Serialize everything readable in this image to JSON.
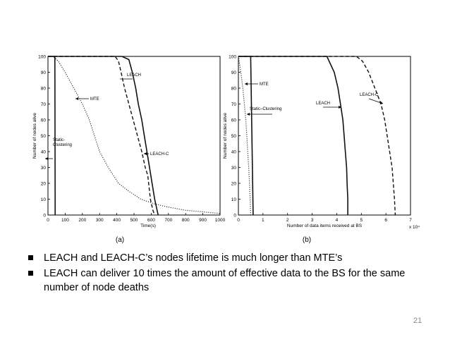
{
  "chart_data": [
    {
      "type": "line",
      "panel_label": "(a)",
      "xlabel": "Time(s)",
      "ylabel": "Number of nodes alive",
      "xlim": [
        0,
        1000
      ],
      "ylim": [
        0,
        100
      ],
      "x_ticks": [
        0,
        100,
        200,
        300,
        400,
        500,
        600,
        700,
        800,
        900,
        1000
      ],
      "y_ticks": [
        0,
        10,
        20,
        30,
        40,
        50,
        60,
        70,
        80,
        90,
        100
      ],
      "x_tick_labels": [
        "0",
        "100",
        "200",
        "300",
        "400",
        "500",
        "600",
        "700",
        "800",
        "900",
        "1000"
      ],
      "y_tick_labels": [
        "0",
        "10",
        "20",
        "30",
        "40",
        "50",
        "60",
        "70",
        "80",
        "90",
        "100"
      ],
      "grid": false,
      "series": [
        {
          "name": "LEACH",
          "style": "solid",
          "points": [
            [
              0,
              100
            ],
            [
              430,
              100
            ],
            [
              470,
              98
            ],
            [
              490,
              90
            ],
            [
              510,
              80
            ],
            [
              525,
              70
            ],
            [
              545,
              60
            ],
            [
              560,
              50
            ],
            [
              575,
              40
            ],
            [
              590,
              30
            ],
            [
              605,
              20
            ],
            [
              620,
              10
            ],
            [
              640,
              0
            ]
          ]
        },
        {
          "name": "LEACH-C",
          "style": "dashed",
          "points": [
            [
              0,
              100
            ],
            [
              390,
              100
            ],
            [
              410,
              97
            ],
            [
              425,
              90
            ],
            [
              445,
              80
            ],
            [
              470,
              70
            ],
            [
              495,
              60
            ],
            [
              520,
              50
            ],
            [
              545,
              40
            ],
            [
              565,
              30
            ],
            [
              580,
              25
            ],
            [
              595,
              10
            ],
            [
              610,
              3
            ],
            [
              620,
              0
            ]
          ]
        },
        {
          "name": "MTE",
          "style": "dotted",
          "points": [
            [
              0,
              100
            ],
            [
              30,
              100
            ],
            [
              60,
              97
            ],
            [
              100,
              90
            ],
            [
              150,
              80
            ],
            [
              200,
              70
            ],
            [
              240,
              60
            ],
            [
              270,
              50
            ],
            [
              300,
              40
            ],
            [
              350,
              30
            ],
            [
              410,
              20
            ],
            [
              470,
              15
            ],
            [
              540,
              10
            ],
            [
              620,
              7
            ],
            [
              700,
              5
            ],
            [
              800,
              3
            ],
            [
              900,
              2
            ],
            [
              1000,
              1
            ]
          ]
        },
        {
          "name": "Static-Clustering",
          "style": "solid",
          "points": [
            [
              0,
              100
            ],
            [
              40,
              100
            ],
            [
              42,
              0
            ]
          ]
        }
      ],
      "annotations": [
        "LEACH",
        "MTE",
        "Static-Clustering",
        "LEACH-C"
      ]
    },
    {
      "type": "line",
      "panel_label": "(b)",
      "xlabel": "Number of data items received at BS",
      "ylabel": "Number of nodes alive",
      "x_multiplier_label": "x 10⁴",
      "xlim": [
        0,
        7
      ],
      "ylim": [
        0,
        100
      ],
      "x_ticks": [
        0,
        1,
        2,
        3,
        4,
        5,
        6,
        7
      ],
      "y_ticks": [
        0,
        10,
        20,
        30,
        40,
        50,
        60,
        70,
        80,
        90,
        100
      ],
      "x_tick_labels": [
        "0",
        "1",
        "2",
        "3",
        "4",
        "5",
        "6",
        "7"
      ],
      "y_tick_labels": [
        "0",
        "10",
        "20",
        "30",
        "40",
        "50",
        "60",
        "70",
        "80",
        "90",
        "100"
      ],
      "grid": false,
      "series": [
        {
          "name": "LEACH",
          "style": "solid",
          "points": [
            [
              0,
              100
            ],
            [
              3.6,
              100
            ],
            [
              3.75,
              95
            ],
            [
              3.9,
              90
            ],
            [
              4.05,
              80
            ],
            [
              4.15,
              70
            ],
            [
              4.25,
              60
            ],
            [
              4.3,
              50
            ],
            [
              4.35,
              40
            ],
            [
              4.4,
              30
            ],
            [
              4.42,
              20
            ],
            [
              4.45,
              10
            ],
            [
              4.45,
              0
            ]
          ]
        },
        {
          "name": "LEACH-C",
          "style": "dashed",
          "points": [
            [
              0,
              100
            ],
            [
              4.8,
              100
            ],
            [
              5.05,
              97
            ],
            [
              5.3,
              90
            ],
            [
              5.55,
              80
            ],
            [
              5.8,
              70
            ],
            [
              5.95,
              60
            ],
            [
              6.05,
              50
            ],
            [
              6.15,
              40
            ],
            [
              6.25,
              30
            ],
            [
              6.3,
              20
            ],
            [
              6.35,
              10
            ],
            [
              6.38,
              0
            ]
          ]
        },
        {
          "name": "MTE",
          "style": "dotted",
          "points": [
            [
              0,
              100
            ],
            [
              0.1,
              90
            ],
            [
              0.18,
              80
            ],
            [
              0.24,
              70
            ],
            [
              0.3,
              60
            ],
            [
              0.34,
              50
            ],
            [
              0.38,
              40
            ],
            [
              0.42,
              30
            ],
            [
              0.45,
              20
            ],
            [
              0.48,
              10
            ],
            [
              0.5,
              0
            ]
          ]
        },
        {
          "name": "Static-Clustering",
          "style": "solid",
          "points": [
            [
              0,
              100
            ],
            [
              0.5,
              100
            ],
            [
              0.6,
              0
            ]
          ]
        }
      ],
      "annotations": [
        "MTE",
        "Static-Clustering",
        "LEACH",
        "LEACH-C"
      ]
    }
  ],
  "bullets": [
    "LEACH and LEACH-C’s nodes lifetime is much longer than MTE’s",
    "LEACH can deliver 10 times the amount of effective data to the BS for the same number of node deaths"
  ],
  "page_number": "21"
}
